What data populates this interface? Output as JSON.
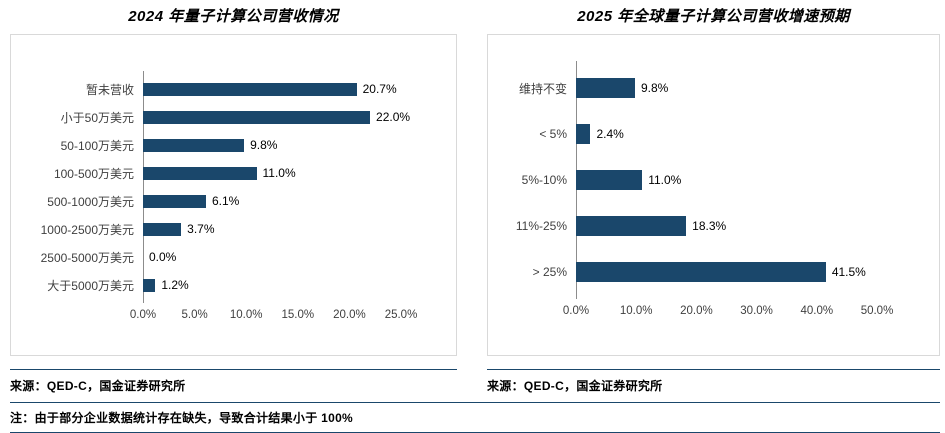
{
  "colors": {
    "bar_fill": "#1a476b",
    "rule": "#1a476b",
    "box_border": "#d9d9d9"
  },
  "chart_data": [
    {
      "type": "bar",
      "orientation": "horizontal",
      "title": "2024 年量子计算公司营收情况",
      "categories": [
        "暂未营收",
        "小于50万美元",
        "50-100万美元",
        "100-500万美元",
        "500-1000万美元",
        "1000-2500万美元",
        "2500-5000万美元",
        "大于5000万美元"
      ],
      "values": [
        20.7,
        22.0,
        9.8,
        11.0,
        6.1,
        3.7,
        0.0,
        1.2
      ],
      "value_labels": [
        "20.7%",
        "22.0%",
        "9.8%",
        "11.0%",
        "6.1%",
        "3.7%",
        "0.0%",
        "1.2%"
      ],
      "xticks": [
        "0.0%",
        "5.0%",
        "10.0%",
        "15.0%",
        "20.0%",
        "25.0%"
      ],
      "xlim": [
        0,
        25
      ],
      "xmax": 25,
      "grid": false,
      "legend": false,
      "source": "来源：QED-C，国金证券研究所"
    },
    {
      "type": "bar",
      "orientation": "horizontal",
      "title": "2025 年全球量子计算公司营收增速预期",
      "categories": [
        "维持不变",
        "< 5%",
        "5%-10%",
        "11%-25%",
        "> 25%"
      ],
      "values": [
        9.8,
        2.4,
        11.0,
        18.3,
        41.5
      ],
      "value_labels": [
        "9.8%",
        "2.4%",
        "11.0%",
        "18.3%",
        "41.5%"
      ],
      "xticks": [
        "0.0%",
        "10.0%",
        "20.0%",
        "30.0%",
        "40.0%",
        "50.0%"
      ],
      "xlim": [
        0,
        50
      ],
      "xmax": 50,
      "grid": false,
      "legend": false,
      "source": "来源：QED-C，国金证券研究所"
    }
  ],
  "note": "注：由于部分企业数据统计存在缺失，导致合计结果小于 100%"
}
